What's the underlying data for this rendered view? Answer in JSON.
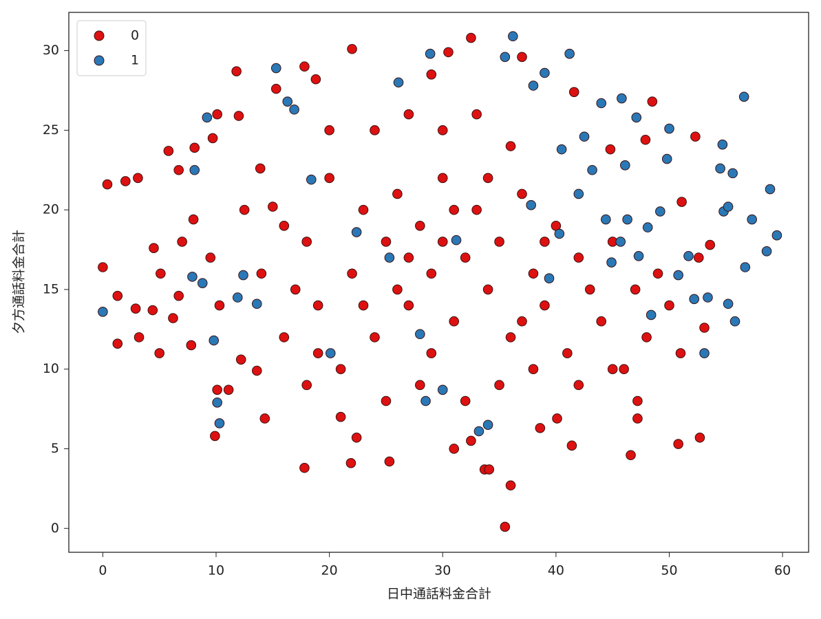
{
  "chart_data": {
    "type": "scatter",
    "xlabel": "日中通話料金合計",
    "ylabel": "夕方通話料金合計",
    "xlim": [
      -3,
      62.3
    ],
    "ylim": [
      -1.5,
      32.4
    ],
    "xticks": [
      0,
      10,
      20,
      30,
      40,
      50,
      60
    ],
    "yticks": [
      0,
      5,
      10,
      15,
      20,
      25,
      30
    ],
    "legend": "upper left",
    "series": [
      {
        "name": "0",
        "color": "#dd1111",
        "x": [
          0,
          0.4,
          2,
          3.1,
          1.3,
          1.3,
          3.2,
          2.9,
          4.5,
          5,
          5.1,
          4.4,
          5.8,
          6.7,
          6.2,
          6.7,
          7,
          7.8,
          9.7,
          8.1,
          10.1,
          11.8,
          12,
          9.9,
          10.1,
          14.3,
          17.8,
          15.3,
          17.8,
          22,
          30.5,
          32.5,
          37,
          29,
          33.7,
          34.1,
          36,
          35.5,
          31,
          32.5,
          25.3,
          21.9,
          22.4,
          46.6,
          50.8,
          52.7,
          53.1,
          52.6,
          53.6,
          52.3,
          48.5,
          51.1,
          47.2,
          47.2,
          41.4,
          41.6,
          44.8,
          47.9,
          38.6,
          40.1,
          18.8,
          12.2,
          11.1,
          13.6,
          8,
          9.5,
          10.3,
          12.5,
          13.9,
          15,
          16,
          17,
          18,
          19,
          20,
          21,
          22,
          23,
          24,
          25,
          26,
          27,
          28,
          29,
          30,
          31,
          32,
          33,
          34,
          35,
          36,
          37,
          38,
          39,
          40,
          41,
          42,
          43,
          44,
          45,
          46,
          47,
          48,
          49,
          24,
          27,
          30,
          33,
          36,
          20,
          25,
          28,
          32,
          35,
          38,
          42,
          45,
          18,
          21,
          14,
          16,
          19,
          50,
          51,
          29,
          31,
          26,
          34,
          23,
          37,
          39,
          27,
          30
        ],
        "y": [
          16.4,
          21.6,
          21.8,
          22,
          14.6,
          11.6,
          12,
          13.8,
          17.6,
          11,
          16,
          13.7,
          23.7,
          22.5,
          13.2,
          14.6,
          18,
          11.5,
          24.5,
          23.9,
          26,
          28.7,
          25.9,
          5.8,
          8.7,
          6.9,
          3.8,
          27.6,
          29,
          30.1,
          29.9,
          30.8,
          29.6,
          28.5,
          3.7,
          3.7,
          2.7,
          0.1,
          5,
          5.5,
          4.2,
          4.1,
          5.7,
          4.6,
          5.3,
          5.7,
          12.6,
          17,
          17.8,
          24.6,
          26.8,
          20.5,
          6.9,
          8,
          5.2,
          27.4,
          23.8,
          24.4,
          6.3,
          6.9,
          28.2,
          10.6,
          8.7,
          9.9,
          19.4,
          17,
          14,
          20,
          22.6,
          20.2,
          12,
          15,
          18,
          14,
          22,
          10,
          16,
          20,
          12,
          18,
          21,
          14,
          19,
          16,
          22,
          13,
          17,
          20,
          15,
          18,
          12,
          21,
          16,
          14,
          19,
          11,
          17,
          15,
          13,
          18,
          10,
          15,
          12,
          16,
          25,
          26,
          25,
          26,
          24,
          25,
          8,
          9,
          8,
          9,
          10,
          9,
          10,
          9,
          7,
          16,
          19,
          11,
          14,
          11,
          11,
          20,
          15,
          22,
          14,
          13,
          18,
          17,
          18
        ]
      },
      {
        "name": "1",
        "color": "#2a78b6",
        "x": [
          0,
          10.1,
          10.3,
          9.8,
          8.1,
          9.2,
          15.3,
          16.3,
          16.9,
          26.1,
          28.9,
          35.5,
          36.2,
          41.2,
          39,
          38,
          56.6,
          54.7,
          55.6,
          54.5,
          58.9,
          59.5,
          58.6,
          57.3,
          56.7,
          55.8,
          55.2,
          53.4,
          53.1,
          52.2,
          50.8,
          51.7,
          54.8,
          55.2,
          50,
          49.8,
          47.1,
          45.8,
          44,
          46.1,
          43.2,
          42,
          44.4,
          45.7,
          48.1,
          49.2,
          47.3,
          48.4,
          34,
          33.2,
          28.5,
          30,
          20.1,
          12.4,
          11.9,
          18.4,
          25.3,
          31.2,
          37.8,
          40.5,
          42.5,
          39.4,
          8.8,
          13.6,
          7.9,
          22.4,
          46.3,
          40.3,
          44.9,
          28
        ],
        "y": [
          13.6,
          7.9,
          6.6,
          11.8,
          22.5,
          25.8,
          28.9,
          26.8,
          26.3,
          28,
          29.8,
          29.6,
          30.9,
          29.8,
          28.6,
          27.8,
          27.1,
          24.1,
          22.3,
          22.6,
          21.3,
          18.4,
          17.4,
          19.4,
          16.4,
          13,
          14.1,
          14.5,
          11,
          14.4,
          15.9,
          17.1,
          19.9,
          20.2,
          25.1,
          23.2,
          25.8,
          27,
          26.7,
          22.8,
          22.5,
          21,
          19.4,
          18,
          18.9,
          19.9,
          17.1,
          13.4,
          6.5,
          6.1,
          8,
          8.7,
          11,
          15.9,
          14.5,
          21.9,
          17,
          18.1,
          20.3,
          23.8,
          24.6,
          15.7,
          15.4,
          14.1,
          15.8,
          18.6,
          19.4,
          18.5,
          16.7,
          12.2
        ]
      }
    ]
  }
}
